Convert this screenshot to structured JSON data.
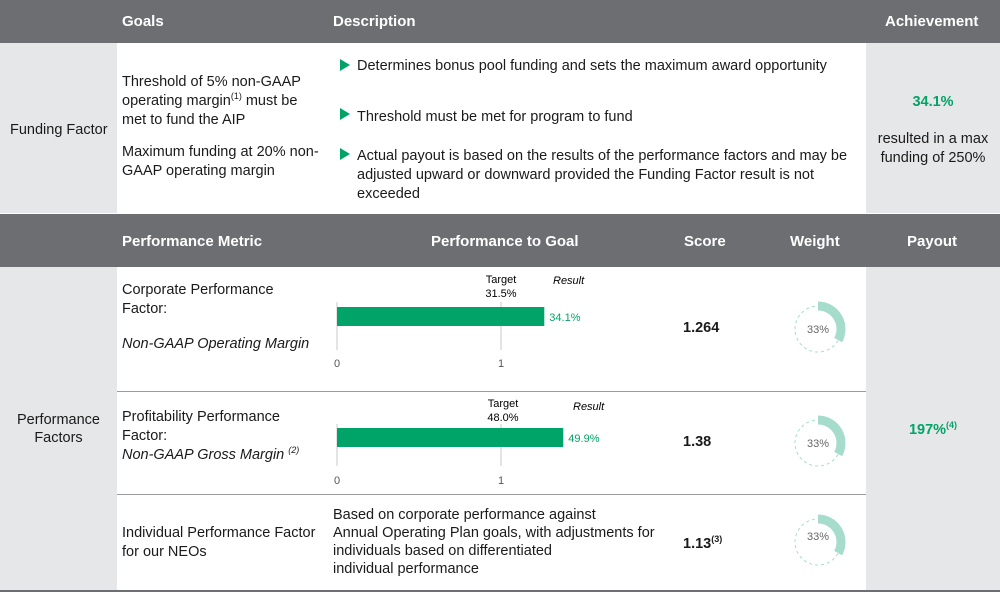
{
  "funding_header": {
    "goals": "Goals",
    "description": "Description",
    "achievement": "Achievement"
  },
  "funding": {
    "label": "Funding Factor",
    "goal_line1_a": "Threshold of 5% non-GAAP",
    "goal_line2_a": "operating margin",
    "goal_line2_sup": "(1)",
    "goal_line2_b": " must be",
    "goal_line3": "met to fund the AIP",
    "goal_line4": "Maximum funding at 20% non-",
    "goal_line5": "GAAP operating margin",
    "bullets": [
      "Determines bonus pool funding and sets the maximum award opportunity",
      "Threshold must be met for program to fund",
      "Actual payout is based on the results of the performance factors and may be adjusted upward or downward provided the Funding Factor result is not exceeded"
    ],
    "achievement_value": "34.1%",
    "achievement_note_1": "resulted in a max",
    "achievement_note_2": "funding of 250%"
  },
  "perf_header": {
    "metric": "Performance Metric",
    "to_goal": "Performance to Goal",
    "score": "Score",
    "weight": "Weight",
    "payout": "Payout"
  },
  "perf": {
    "label_1": "Performance",
    "label_2": "Factors",
    "payout_value": "197%",
    "payout_sup": "(4)",
    "rows": [
      {
        "metric_line1": "Corporate Performance",
        "metric_line2": "Factor:",
        "metric_italic": "Non-GAAP Operating Margin",
        "metric_sup": "",
        "target_label": "Target",
        "target_value": "31.5%",
        "result_label": "Result",
        "result_value": "34.1%",
        "result_fraction": 1.264,
        "axis_0": "0",
        "axis_1": "1",
        "score": "1.264",
        "score_sup": "",
        "weight": "33%",
        "weight_fraction": 0.33
      },
      {
        "metric_line1": "Profitability Performance",
        "metric_line2": "Factor:",
        "metric_italic": "Non-GAAP Gross Margin",
        "metric_sup": "(2)",
        "target_label": "Target",
        "target_value": "48.0%",
        "result_label": "Result",
        "result_value": "49.9%",
        "result_fraction": 1.38,
        "axis_0": "0",
        "axis_1": "1",
        "score": "1.38",
        "score_sup": "",
        "weight": "33%",
        "weight_fraction": 0.33
      },
      {
        "metric_line1": "Individual Performance Factor",
        "metric_line2": "for our NEOs",
        "description_lines": [
          "Based on corporate performance against",
          "Annual Operating Plan goals, with adjustments for",
          "individuals based on differentiated",
          "individual performance"
        ],
        "score": "1.13",
        "score_sup": "(3)",
        "weight": "33%",
        "weight_fraction": 0.33
      }
    ]
  },
  "colors": {
    "header_bg": "#6d6e71",
    "side_bg": "#e6e7e8",
    "accent_green": "#00a468",
    "donut_fill": "#a6dccb"
  }
}
